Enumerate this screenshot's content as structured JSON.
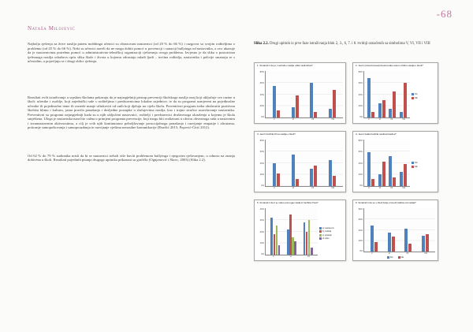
{
  "page": {
    "number": "-68",
    "author": "Nataša Milojević",
    "accent_color": "#ab5a88"
  },
  "left_column": {
    "paragraphs": [
      "Najbolja rješenja za žrtve nasilja putem mobbinga učenici su obrazovani nastavnici (od 20 % do 66 %) i razgovor sa svojim roditeljima o problemu (od 45 % do 66 %). Neki su učenici naveli da ne mogu dobiti pomoć u prevenciji i sanaciji bullyinga od nastavnika, a ovo ukazuje da je nastavnicima potrebna pomoć u administrativno-tehničkoj organizaciji rješavanja ovoga problema. Izvjesno je da slika o postotcima tjelesnoga nasilja odražava opću sliku škole i života u kojemu odrastaju mladi ljudi – trećina roditelja, nastavnika i policije smatraju se s učestalim, a pojavljuju se i drugi oblici rješenja.",
      "Rezultati ovih istraživanja u srpskim školama pokazuju da je najuspješniji pristup prevenciji školskoga nasilja onaj koji uključuje sve razine u školi: učenike i osoblje, koji zajednički rade s roditeljima i predstavnicima lokalne zajednice, te da su programi usmjereni na pojedinačne učenike ili pojedinačne teme ili razrede manje učinkoviti od onih koji djeluju na cijelu školu. Preventivni program treba obuhvatiti pozitivnu školsku klimu i kulturu, jasna pravila ponašanja i dosljedne postupke u slučajevima nasilja, kao i trajno stručno usavršavanje nastavnika. Preventivni su programi najuspješniji kada su u njih uključeni nastavnici, roditelji i predstavnici društvenoga okruženja u kojemu je škola smještena. Uloga je nastavnika naročito važna u primjeni programa prevencije, koji mogu biti realizirani u okviru obveznoga rada u nastavnim i izvannastavnim aktivnostima, a cilj je svih njih kontinuirano poboljšavanje prosocijalnoga ponašanja i razvijanje empatije i altruizma, poticanje samopoštovanja i samopouzdanja te razvijanje vještina nenasilne komunikacije (Đurišić 2015; Popović-Ćitić 2012).",
      "Od 62 % do 79 % sudionika misli da bi se nastavnici trebali više baviti problemom bullyinga i njegovim rješavanjem, u odnosu na znanja dobivena u školi. Rezultati pojedinih pitanja drugoga upitnika prikazani su grafički (Ognjenović i Škorc, 2003) (Slika 2.2)."
    ]
  },
  "right_column": {
    "caption_bold": "Slika 2.2.",
    "caption_text": " Drugi upitnik iz prve faze istraživanja blok 2, 3., 6, 7. i 8. tvrdnji označenih sa simbolima V, VI, VII i VIII"
  },
  "chart_data": [
    {
      "type": "bar",
      "title": "1. Smatraš li da je i verbalno nasilje oblik nasilništva?",
      "categories": [
        "V",
        "VI",
        "VII",
        "VIII"
      ],
      "series": [
        {
          "name": "DA",
          "color": "#4f81bd",
          "values": [
            55,
            18,
            60,
            15
          ]
        },
        {
          "name": "NE",
          "color": "#c0504d",
          "values": [
            12,
            38,
            10,
            48
          ]
        }
      ],
      "ylim": [
        0,
        80
      ],
      "yticks": [
        "0%",
        "20%",
        "40%",
        "60%",
        "80%"
      ],
      "legend_position": "none"
    },
    {
      "type": "bar",
      "title": "2. Jesi li prisustvovao/prisustvovala nekom obliku nasilja u školi?",
      "categories": [
        "V",
        "VI",
        "VII",
        "VIII"
      ],
      "series": [
        {
          "name": "DA",
          "color": "#4f81bd",
          "values": [
            68,
            25,
            15,
            10
          ]
        },
        {
          "name": "NE",
          "color": "#c0504d",
          "values": [
            10,
            30,
            45,
            60
          ]
        }
      ],
      "ylim": [
        0,
        80
      ],
      "yticks": [
        "0%",
        "20%",
        "40%",
        "60%",
        "80%"
      ],
      "legend_position": "right"
    },
    {
      "type": "bar",
      "title": "3. Jesi li bio/bila žrtva nasilja u školi?",
      "categories": [
        "V",
        "VI",
        "VII",
        "VIII"
      ],
      "series": [
        {
          "name": "DA",
          "color": "#4f81bd",
          "values": [
            40,
            55,
            30,
            45
          ]
        },
        {
          "name": "NE",
          "color": "#c0504d",
          "values": [
            22,
            12,
            35,
            18
          ]
        }
      ],
      "ylim": [
        0,
        80
      ],
      "yticks": [
        "0%",
        "20%",
        "40%",
        "60%",
        "80%"
      ],
      "legend_position": "none"
    },
    {
      "type": "bar",
      "title": "4. Jesi li ikada bio/bila nasilan/nasilna?",
      "categories": [
        "V",
        "VI",
        "VII",
        "VIII"
      ],
      "series": [
        {
          "name": "DA",
          "color": "#4f81bd",
          "values": [
            58,
            20,
            52,
            25
          ]
        },
        {
          "name": "NE",
          "color": "#c0504d",
          "values": [
            12,
            42,
            15,
            38
          ]
        }
      ],
      "ylim": [
        0,
        80
      ],
      "yticks": [
        "0%",
        "20%",
        "40%",
        "60%",
        "80%"
      ],
      "legend_position": "right"
    },
    {
      "type": "bar",
      "title": "5. Smatraš li da ti je netko pomogao kada si bio/bila žrtva?",
      "categories": [
        "V",
        "VI",
        "VII"
      ],
      "series": [
        {
          "name": "a) nastavnici",
          "color": "#4f81bd",
          "values": [
            32,
            22,
            28
          ]
        },
        {
          "name": "b) roditelji",
          "color": "#c0504d",
          "values": [
            18,
            35,
            20
          ]
        },
        {
          "name": "c) prijatelji",
          "color": "#9bbb59",
          "values": [
            25,
            15,
            30
          ]
        },
        {
          "name": "d) nitko",
          "color": "#8064a2",
          "values": [
            8,
            12,
            6
          ]
        }
      ],
      "ylim": [
        0,
        40
      ],
      "yticks": [
        "0%",
        "10%",
        "20%",
        "30%",
        "40%"
      ],
      "legend_position": "right"
    },
    {
      "type": "bar",
      "title": "6. Smatraš li da se u školi bolje provodi zaštita od nasilja?",
      "categories": [
        "V",
        "VI",
        "VII",
        "VIII"
      ],
      "series": [
        {
          "name": "DA",
          "color": "#4f81bd",
          "values": [
            48,
            35,
            42,
            30
          ]
        },
        {
          "name": "NE",
          "color": "#c0504d",
          "values": [
            18,
            28,
            15,
            32
          ]
        }
      ],
      "ylim": [
        0,
        80
      ],
      "yticks": [
        "0%",
        "20%",
        "40%",
        "60%",
        "80%"
      ],
      "legend_position": "bottom"
    }
  ]
}
